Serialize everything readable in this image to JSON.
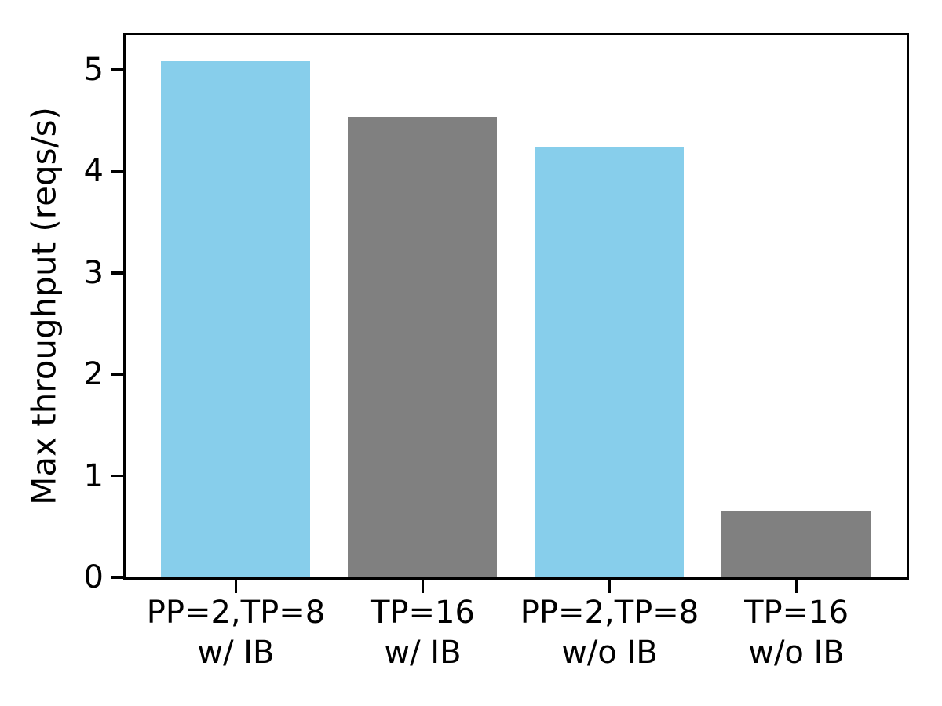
{
  "chart_data": {
    "type": "bar",
    "title": "",
    "xlabel": "",
    "ylabel": "Max throughput (reqs/s)",
    "categories": [
      "PP=2,TP=8\nw/ IB",
      "TP=16\nw/ IB",
      "PP=2,TP=8\nw/o IB",
      "TP=16\nw/o IB"
    ],
    "values": [
      5.08,
      4.53,
      4.23,
      0.65
    ],
    "bar_colors": [
      "#87CEEB",
      "#808080",
      "#87CEEB",
      "#808080"
    ],
    "yticks": [
      0,
      1,
      2,
      3,
      4,
      5
    ],
    "ylim": [
      0,
      5.34
    ],
    "xlim": [
      -0.59,
      3.59
    ],
    "bar_width": 0.8,
    "grid": false,
    "legend_position": "none",
    "axis_color": "#000000",
    "text_color": "#000000",
    "background_color": "#ffffff"
  }
}
